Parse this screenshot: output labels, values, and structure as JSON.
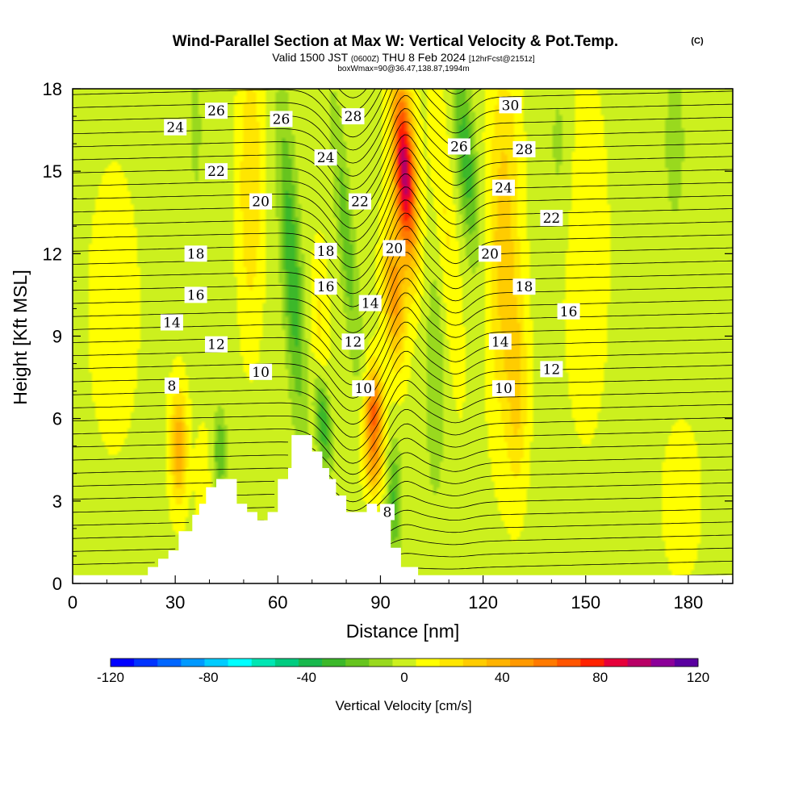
{
  "header": {
    "title_main": "Wind-Parallel Section at Max W: Vertical Velocity & Pot.Temp.",
    "title_mark": "(C)",
    "valid_prefix": "Valid 1500 JST",
    "valid_zulu": "(0600Z)",
    "valid_date": "THU 8 Feb 2024",
    "valid_fcst": "[12hrFcst@2151z]",
    "box_info": "boxWmax=90@36.47,138.87,1994m"
  },
  "colorbar": {
    "label": "Vertical Velocity [cm/s]",
    "tick_labels": [
      "-120",
      "-80",
      "-40",
      "0",
      "40",
      "80",
      "120"
    ],
    "tick_values": [
      -120,
      -80,
      -40,
      0,
      40,
      80,
      120
    ],
    "min": -120,
    "max": 120,
    "colors": [
      "#0000ff",
      "#0033ff",
      "#0066ff",
      "#0099ff",
      "#00ccff",
      "#00ffff",
      "#00e6b3",
      "#00cc80",
      "#19b84d",
      "#3cb82a",
      "#66c41e",
      "#99d91e",
      "#ccf01e",
      "#ffff00",
      "#ffe600",
      "#ffcc00",
      "#ffb300",
      "#ff9900",
      "#ff7a00",
      "#ff5500",
      "#ff2200",
      "#e6003a",
      "#b80066",
      "#8c0099",
      "#5a00a0"
    ]
  },
  "chart_data": {
    "type": "heatmap",
    "xlabel": "Distance [nm]",
    "ylabel": "Height [Kft MSL]",
    "xlim": [
      0,
      193
    ],
    "ylim": [
      0,
      18
    ],
    "x_ticks": [
      0,
      30,
      60,
      90,
      120,
      150,
      180
    ],
    "y_ticks": [
      0,
      3,
      6,
      9,
      12,
      15,
      18
    ],
    "x_tick_labels": [
      "0",
      "30",
      "60",
      "90",
      "120",
      "150",
      "180"
    ],
    "y_tick_labels": [
      "0",
      "3",
      "6",
      "9",
      "12",
      "15",
      "18"
    ],
    "color_variable": "Vertical Velocity [cm/s]",
    "contour_variable": "Pot.Temp.",
    "contour_levels": [
      8,
      10,
      12,
      14,
      16,
      18,
      20,
      22,
      24,
      26,
      28,
      30
    ],
    "contour_labels": [
      {
        "text": "8",
        "x": 29,
        "y": 7.2
      },
      {
        "text": "10",
        "x": 55,
        "y": 7.7
      },
      {
        "text": "12",
        "x": 42,
        "y": 8.7
      },
      {
        "text": "14",
        "x": 29,
        "y": 9.5
      },
      {
        "text": "16",
        "x": 36,
        "y": 10.5
      },
      {
        "text": "18",
        "x": 36,
        "y": 12.0
      },
      {
        "text": "20",
        "x": 55,
        "y": 13.9
      },
      {
        "text": "22",
        "x": 42,
        "y": 15.0
      },
      {
        "text": "24",
        "x": 30,
        "y": 16.6
      },
      {
        "text": "26",
        "x": 42,
        "y": 17.2
      },
      {
        "text": "26",
        "x": 61,
        "y": 16.9
      },
      {
        "text": "24",
        "x": 74,
        "y": 15.5
      },
      {
        "text": "18",
        "x": 74,
        "y": 12.1
      },
      {
        "text": "16",
        "x": 74,
        "y": 10.8
      },
      {
        "text": "12",
        "x": 82,
        "y": 8.8
      },
      {
        "text": "10",
        "x": 85,
        "y": 7.1
      },
      {
        "text": "14",
        "x": 87,
        "y": 10.2
      },
      {
        "text": "22",
        "x": 84,
        "y": 13.9
      },
      {
        "text": "28",
        "x": 82,
        "y": 17.0
      },
      {
        "text": "20",
        "x": 94,
        "y": 12.2
      },
      {
        "text": "8",
        "x": 92,
        "y": 2.6
      },
      {
        "text": "26",
        "x": 113,
        "y": 15.9
      },
      {
        "text": "30",
        "x": 128,
        "y": 17.4
      },
      {
        "text": "28",
        "x": 132,
        "y": 15.8
      },
      {
        "text": "24",
        "x": 126,
        "y": 14.4
      },
      {
        "text": "20",
        "x": 122,
        "y": 12.0
      },
      {
        "text": "22",
        "x": 140,
        "y": 13.3
      },
      {
        "text": "18",
        "x": 132,
        "y": 10.8
      },
      {
        "text": "16",
        "x": 145,
        "y": 9.9
      },
      {
        "text": "14",
        "x": 125,
        "y": 8.8
      },
      {
        "text": "12",
        "x": 140,
        "y": 7.8
      },
      {
        "text": "10",
        "x": 126,
        "y": 7.1
      }
    ],
    "terrain_kft": [
      [
        0,
        0.3
      ],
      [
        22,
        0.3
      ],
      [
        22,
        0.6
      ],
      [
        25,
        0.6
      ],
      [
        25,
        0.9
      ],
      [
        28,
        0.9
      ],
      [
        28,
        1.2
      ],
      [
        31,
        1.2
      ],
      [
        31,
        1.9
      ],
      [
        35,
        1.9
      ],
      [
        35,
        2.5
      ],
      [
        37,
        2.5
      ],
      [
        37,
        2.9
      ],
      [
        39,
        2.9
      ],
      [
        39,
        3.5
      ],
      [
        42,
        3.5
      ],
      [
        42,
        3.8
      ],
      [
        48,
        3.8
      ],
      [
        48,
        2.9
      ],
      [
        51,
        2.9
      ],
      [
        51,
        2.6
      ],
      [
        54,
        2.6
      ],
      [
        54,
        2.3
      ],
      [
        57,
        2.3
      ],
      [
        57,
        2.6
      ],
      [
        60,
        2.6
      ],
      [
        60,
        3.8
      ],
      [
        63,
        3.8
      ],
      [
        63,
        4.2
      ],
      [
        64,
        4.2
      ],
      [
        64,
        5.4
      ],
      [
        70,
        5.4
      ],
      [
        70,
        4.8
      ],
      [
        73,
        4.8
      ],
      [
        73,
        4.2
      ],
      [
        75,
        4.2
      ],
      [
        75,
        3.8
      ],
      [
        77,
        3.8
      ],
      [
        77,
        3.2
      ],
      [
        80,
        3.2
      ],
      [
        80,
        2.6
      ],
      [
        86,
        2.6
      ],
      [
        86,
        2.9
      ],
      [
        89,
        2.9
      ],
      [
        89,
        2.6
      ],
      [
        93,
        2.6
      ],
      [
        93,
        1.3
      ],
      [
        96,
        1.3
      ],
      [
        96,
        0.6
      ],
      [
        101,
        0.6
      ],
      [
        101,
        0.3
      ],
      [
        193,
        0.3
      ]
    ],
    "vertical_velocity_features": [
      {
        "x": 97,
        "y": 15.0,
        "sx": 3.2,
        "sy": 3.2,
        "tilt": -0.22,
        "w": 95
      },
      {
        "x": 94,
        "y": 10.5,
        "sx": 3.0,
        "sy": 2.5,
        "tilt": -0.15,
        "w": 45
      },
      {
        "x": 88,
        "y": 6.2,
        "sx": 2.6,
        "sy": 1.6,
        "tilt": 0,
        "w": 62
      },
      {
        "x": 88,
        "y": 4.2,
        "sx": 2.6,
        "sy": 1.1,
        "tilt": 0,
        "w": 30
      },
      {
        "x": 126,
        "y": 12.5,
        "sx": 4.5,
        "sy": 6.5,
        "tilt": 0,
        "w": 28
      },
      {
        "x": 130,
        "y": 7.0,
        "sx": 3.0,
        "sy": 3.5,
        "tilt": 0,
        "w": 22
      },
      {
        "x": 109,
        "y": 13.0,
        "sx": 3.0,
        "sy": 5.5,
        "tilt": -0.3,
        "w": 14
      },
      {
        "x": 31,
        "y": 5.0,
        "sx": 2.4,
        "sy": 2.0,
        "tilt": 0,
        "w": 40
      },
      {
        "x": 38,
        "y": 3.5,
        "sx": 2.0,
        "sy": 2.0,
        "tilt": 0,
        "w": 12
      },
      {
        "x": 52,
        "y": 14.5,
        "sx": 3.5,
        "sy": 5.0,
        "tilt": 0,
        "w": 22
      },
      {
        "x": 72,
        "y": 9.0,
        "sx": 2.5,
        "sy": 3.0,
        "tilt": 0,
        "w": 15
      },
      {
        "x": 150,
        "y": 12.0,
        "sx": 8.0,
        "sy": 8.0,
        "tilt": 0,
        "w": 6
      },
      {
        "x": 12,
        "y": 10.0,
        "sx": 10.0,
        "sy": 7.0,
        "tilt": 0,
        "w": 5
      },
      {
        "x": 178,
        "y": 3.0,
        "sx": 10.0,
        "sy": 5.0,
        "tilt": 0,
        "w": 4
      },
      {
        "x": 115,
        "y": 15.5,
        "sx": 2.8,
        "sy": 3.5,
        "tilt": -0.3,
        "w": -32
      },
      {
        "x": 64,
        "y": 11.5,
        "sx": 2.8,
        "sy": 5.5,
        "tilt": -0.22,
        "w": -34
      },
      {
        "x": 73,
        "y": 6.0,
        "sx": 2.2,
        "sy": 1.8,
        "tilt": -0.3,
        "w": -38
      },
      {
        "x": 80,
        "y": 12.5,
        "sx": 2.5,
        "sy": 5.0,
        "tilt": -0.35,
        "w": -22
      },
      {
        "x": 94,
        "y": 3.0,
        "sx": 2.0,
        "sy": 2.0,
        "tilt": 0,
        "w": -28
      },
      {
        "x": 106,
        "y": 7.5,
        "sx": 3.0,
        "sy": 5.0,
        "tilt": 0,
        "w": -14
      },
      {
        "x": 43,
        "y": 4.8,
        "sx": 1.8,
        "sy": 1.5,
        "tilt": 0,
        "w": -26
      },
      {
        "x": 36,
        "y": 16.5,
        "sx": 2.0,
        "sy": 3.0,
        "tilt": 0,
        "w": -10
      },
      {
        "x": 176,
        "y": 16.0,
        "sx": 4.0,
        "sy": 4.0,
        "tilt": 0,
        "w": -10
      },
      {
        "x": 142,
        "y": 16.0,
        "sx": 3.0,
        "sy": 3.0,
        "tilt": 0,
        "w": -10
      }
    ]
  }
}
